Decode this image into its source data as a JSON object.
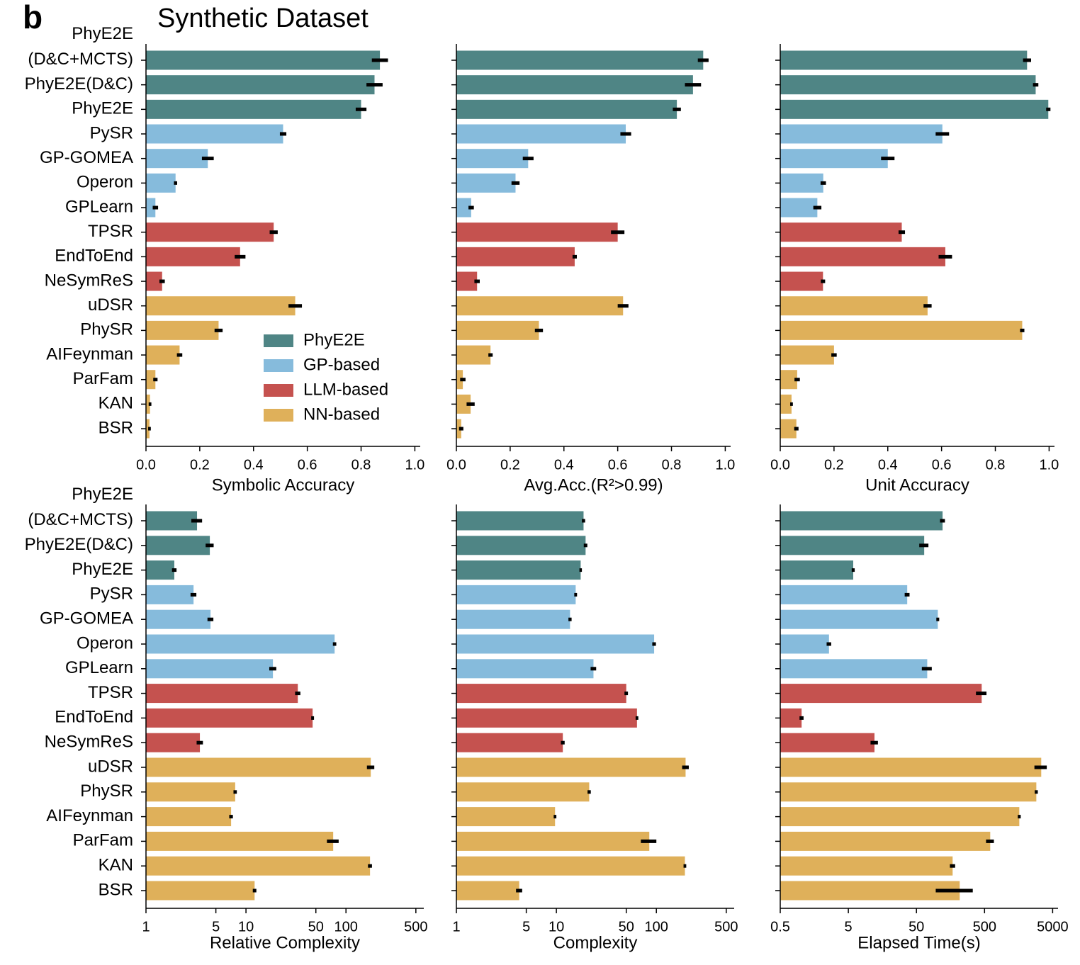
{
  "panel_label": "b",
  "title": "Synthetic Dataset",
  "chart_data": [
    {
      "type": "bar",
      "orientation": "horizontal",
      "xlabel": "Symbolic Accuracy",
      "log": false,
      "categories": [
        "PhyE2E\n(D&C+MCTS)",
        "PhyE2E(D&C)",
        "PhyE2E",
        "PySR",
        "GP-GOMEA",
        "Operon",
        "GPLearn",
        "TPSR",
        "EndToEnd",
        "NeSymReS",
        "uDSR",
        "PhySR",
        "AIFeynman",
        "ParFam",
        "KAN",
        "BSR"
      ],
      "values": [
        0.87,
        0.85,
        0.8,
        0.51,
        0.23,
        0.11,
        0.035,
        0.475,
        0.35,
        0.06,
        0.555,
        0.27,
        0.125,
        0.035,
        0.015,
        0.013
      ],
      "errors": [
        0.03,
        0.03,
        0.02,
        0.012,
        0.022,
        0.006,
        0.01,
        0.015,
        0.02,
        0.01,
        0.025,
        0.015,
        0.01,
        0.008,
        0.005,
        0.005
      ],
      "colors": [
        "#4f8585",
        "#4f8585",
        "#4f8585",
        "#86bbdc",
        "#86bbdc",
        "#86bbdc",
        "#86bbdc",
        "#c5524f",
        "#c5524f",
        "#c5524f",
        "#dfb05a",
        "#dfb05a",
        "#dfb05a",
        "#dfb05a",
        "#dfb05a",
        "#dfb05a"
      ],
      "xlim": [
        0,
        1.02
      ],
      "xticks": [
        {
          "value": 0,
          "label": "0.0"
        },
        0.2,
        0.4,
        0.6,
        0.8,
        {
          "value": 1,
          "label": "1.0"
        }
      ],
      "legend": [
        {
          "name": "PhyE2E",
          "color": "#4f8585"
        },
        {
          "name": "GP-based",
          "color": "#86bbdc"
        },
        {
          "name": "LLM-based",
          "color": "#c5524f"
        },
        {
          "name": "NN-based",
          "color": "#dfb05a"
        }
      ],
      "legend_loc": "lower right"
    },
    {
      "type": "bar",
      "orientation": "horizontal",
      "xlabel": "Avg.Acc.(R²>0.99)",
      "log": false,
      "values": [
        0.918,
        0.88,
        0.82,
        0.63,
        0.267,
        0.22,
        0.055,
        0.6,
        0.44,
        0.077,
        0.62,
        0.307,
        0.127,
        0.024,
        0.053,
        0.018
      ],
      "errors": [
        0.02,
        0.03,
        0.015,
        0.02,
        0.02,
        0.015,
        0.01,
        0.025,
        0.008,
        0.01,
        0.02,
        0.015,
        0.008,
        0.01,
        0.015,
        0.008
      ],
      "colors": [
        "#4f8585",
        "#4f8585",
        "#4f8585",
        "#86bbdc",
        "#86bbdc",
        "#86bbdc",
        "#86bbdc",
        "#c5524f",
        "#c5524f",
        "#c5524f",
        "#dfb05a",
        "#dfb05a",
        "#dfb05a",
        "#dfb05a",
        "#dfb05a",
        "#dfb05a"
      ],
      "xlim": [
        0,
        1.02
      ],
      "xticks": [
        {
          "value": 0,
          "label": "0.0"
        },
        0.2,
        0.4,
        0.6,
        0.8,
        {
          "value": 1,
          "label": "1.0"
        }
      ]
    },
    {
      "type": "bar",
      "orientation": "horizontal",
      "xlabel": "Unit Accuracy",
      "log": false,
      "values": [
        0.918,
        0.95,
        0.997,
        0.603,
        0.4,
        0.16,
        0.138,
        0.452,
        0.614,
        0.159,
        0.548,
        0.9,
        0.2,
        0.063,
        0.042,
        0.06
      ],
      "errors": [
        0.015,
        0.01,
        0.008,
        0.025,
        0.025,
        0.01,
        0.015,
        0.012,
        0.025,
        0.008,
        0.015,
        0.008,
        0.01,
        0.01,
        0.005,
        0.008
      ],
      "colors": [
        "#4f8585",
        "#4f8585",
        "#4f8585",
        "#86bbdc",
        "#86bbdc",
        "#86bbdc",
        "#86bbdc",
        "#c5524f",
        "#c5524f",
        "#c5524f",
        "#dfb05a",
        "#dfb05a",
        "#dfb05a",
        "#dfb05a",
        "#dfb05a",
        "#dfb05a"
      ],
      "xlim": [
        0,
        1.02
      ],
      "xticks": [
        {
          "value": 0,
          "label": "0.0"
        },
        0.2,
        0.4,
        0.6,
        0.8,
        {
          "value": 1,
          "label": "1.0"
        }
      ]
    },
    {
      "type": "bar",
      "orientation": "horizontal",
      "xlabel": "Relative Complexity",
      "log": true,
      "categories": [
        "PhyE2E\n(D&C+MCTS)",
        "PhyE2E(D&C)",
        "PhyE2E",
        "PySR",
        "GP-GOMEA",
        "Operon",
        "GPLearn",
        "TPSR",
        "EndToEnd",
        "NeSymReS",
        "uDSR",
        "PhySR",
        "AIFeynman",
        "ParFam",
        "KAN",
        "BSR"
      ],
      "values": [
        3.24,
        4.35,
        1.92,
        2.99,
        4.42,
        77,
        18.6,
        33,
        46.4,
        3.46,
        177,
        7.8,
        7.1,
        74.5,
        174,
        12.2
      ],
      "errors": [
        0.4,
        0.4,
        0.1,
        0.2,
        0.3,
        3,
        1.5,
        2,
        1.5,
        0.25,
        15,
        0.3,
        0.3,
        10,
        8,
        0.5
      ],
      "colors": [
        "#4f8585",
        "#4f8585",
        "#4f8585",
        "#86bbdc",
        "#86bbdc",
        "#86bbdc",
        "#86bbdc",
        "#c5524f",
        "#c5524f",
        "#c5524f",
        "#dfb05a",
        "#dfb05a",
        "#dfb05a",
        "#dfb05a",
        "#dfb05a",
        "#dfb05a"
      ],
      "xlim": [
        1,
        600
      ],
      "xticks": [
        1,
        5,
        10,
        50,
        100,
        500
      ]
    },
    {
      "type": "bar",
      "orientation": "horizontal",
      "xlabel": "Complexity",
      "log": true,
      "values": [
        18.7,
        19.6,
        17.5,
        15.6,
        13.7,
        95,
        23.5,
        50,
        64,
        11.6,
        196,
        21.3,
        9.7,
        85,
        193,
        4.25
      ],
      "errors": [
        0.7,
        0.8,
        0.5,
        0.5,
        0.5,
        4,
        1.5,
        2,
        2,
        0.5,
        15,
        0.8,
        0.3,
        15,
        6,
        0.3
      ],
      "colors": [
        "#4f8585",
        "#4f8585",
        "#4f8585",
        "#86bbdc",
        "#86bbdc",
        "#86bbdc",
        "#86bbdc",
        "#c5524f",
        "#c5524f",
        "#c5524f",
        "#dfb05a",
        "#dfb05a",
        "#dfb05a",
        "#dfb05a",
        "#dfb05a",
        "#dfb05a"
      ],
      "xlim": [
        1,
        600
      ],
      "xticks": [
        1,
        5,
        10,
        50,
        100,
        500
      ]
    },
    {
      "type": "bar",
      "orientation": "horizontal",
      "xlabel": "Elapsed Time(s)",
      "log": true,
      "values": [
        121,
        65,
        5.9,
        36.6,
        103,
        2.6,
        72,
        454,
        1.03,
        12.1,
        3400,
        2880,
        1620,
        606,
        170,
        216
      ],
      "errors": [
        10,
        10,
        0.3,
        3,
        5,
        0.2,
        12,
        80,
        0.07,
        1.5,
        700,
        150,
        80,
        80,
        15,
        120
      ],
      "colors": [
        "#4f8585",
        "#4f8585",
        "#4f8585",
        "#86bbdc",
        "#86bbdc",
        "#86bbdc",
        "#86bbdc",
        "#c5524f",
        "#c5524f",
        "#c5524f",
        "#dfb05a",
        "#dfb05a",
        "#dfb05a",
        "#dfb05a",
        "#dfb05a",
        "#dfb05a"
      ],
      "xlim": [
        0.5,
        6000
      ],
      "xticks": [
        0.5,
        5,
        50,
        500,
        5000
      ]
    }
  ]
}
